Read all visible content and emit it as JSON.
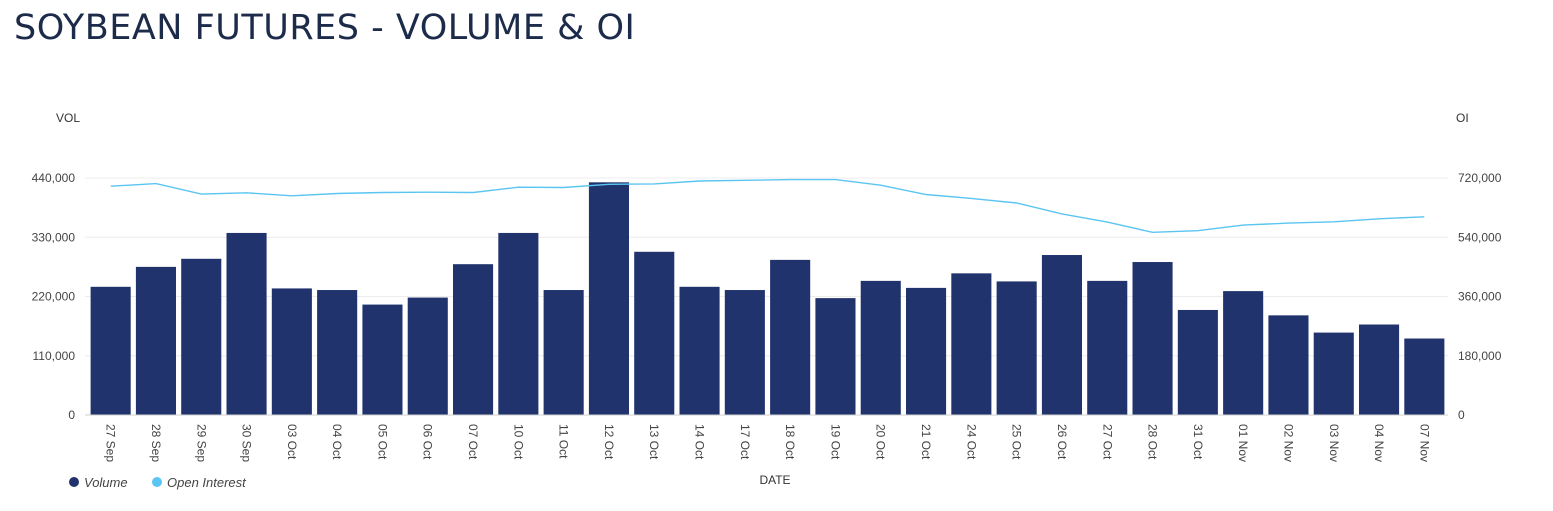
{
  "title": "SOYBEAN FUTURES - VOLUME & OI",
  "chart_data": {
    "type": "bar",
    "xlabel": "DATE",
    "ylabel_left": "VOL",
    "ylabel_right": "OI",
    "categories": [
      "27 Sep",
      "28 Sep",
      "29 Sep",
      "30 Sep",
      "03 Oct",
      "04 Oct",
      "05 Oct",
      "06 Oct",
      "07 Oct",
      "10 Oct",
      "11 Oct",
      "12 Oct",
      "13 Oct",
      "14 Oct",
      "17 Oct",
      "18 Oct",
      "19 Oct",
      "20 Oct",
      "21 Oct",
      "24 Oct",
      "25 Oct",
      "26 Oct",
      "27 Oct",
      "28 Oct",
      "31 Oct",
      "01 Nov",
      "02 Nov",
      "03 Nov",
      "04 Nov",
      "07 Nov"
    ],
    "ylim_left": [
      0,
      440000
    ],
    "ylim_right": [
      0,
      720000
    ],
    "yticks_left": [
      "0",
      "110,000",
      "220,000",
      "330,000",
      "440,000"
    ],
    "yticks_right": [
      "0",
      "180,000",
      "360,000",
      "540,000",
      "720,000"
    ],
    "grid": true,
    "legend_position": "bottom-left",
    "series": [
      {
        "name": "Volume",
        "type": "bar",
        "axis": "left",
        "color": "#21336d",
        "values": [
          238000,
          275000,
          290000,
          338000,
          235000,
          232000,
          205000,
          218000,
          280000,
          338000,
          232000,
          432000,
          303000,
          238000,
          232000,
          288000,
          217000,
          249000,
          236000,
          263000,
          248000,
          297000,
          249000,
          284000,
          195000,
          230000,
          185000,
          153000,
          168000,
          142000
        ]
      },
      {
        "name": "Open Interest",
        "type": "line",
        "axis": "right",
        "color": "#5bc5f2",
        "values": [
          695000,
          703000,
          671000,
          675000,
          666000,
          673000,
          676000,
          677000,
          676000,
          692000,
          691000,
          701000,
          702000,
          711000,
          713000,
          715000,
          715000,
          698000,
          670000,
          658000,
          644000,
          611000,
          586000,
          555000,
          560000,
          577000,
          583000,
          587000,
          596000,
          602000
        ]
      }
    ]
  }
}
